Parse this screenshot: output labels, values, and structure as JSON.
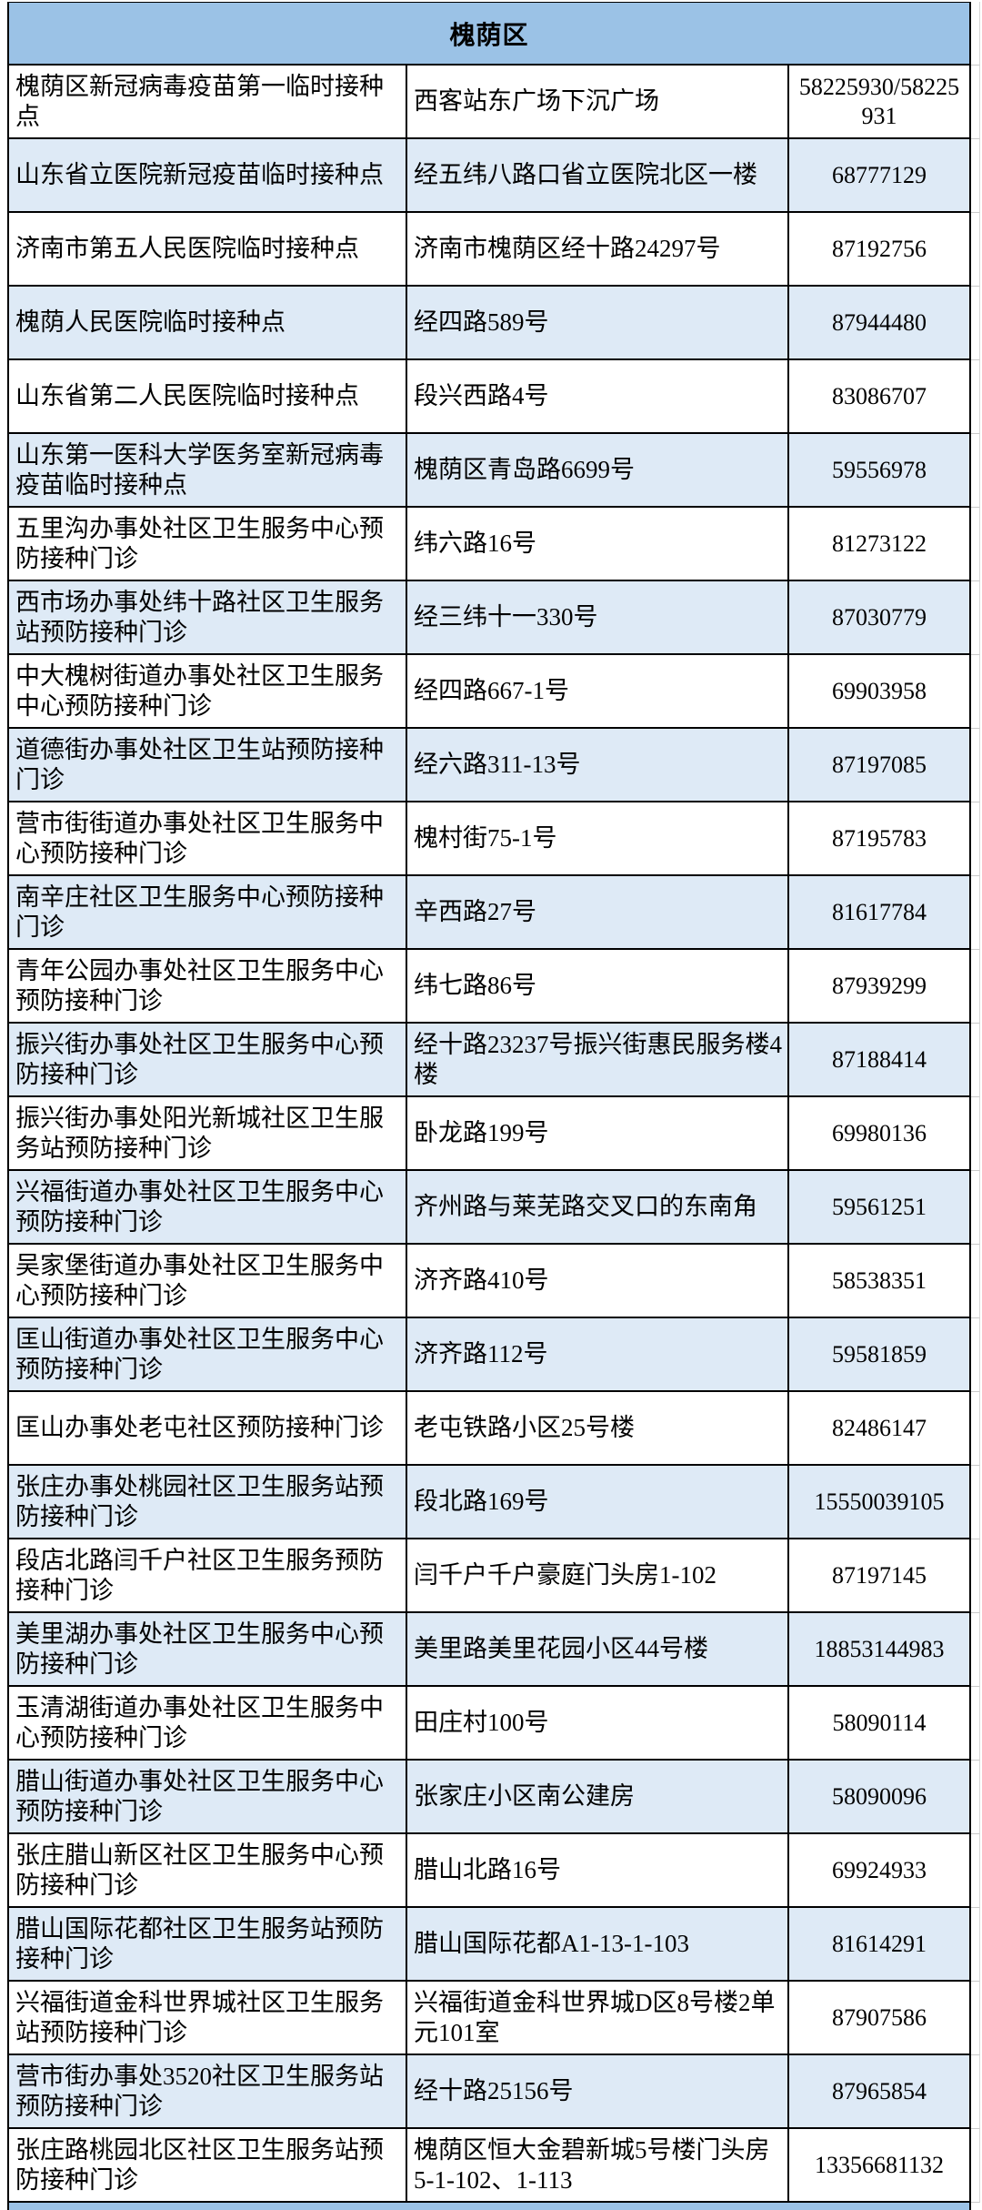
{
  "table": {
    "district": "槐荫区",
    "colors": {
      "header_bg": "#9bc2e6",
      "alt_row_bg": "#deeaf6",
      "border": "#000000"
    },
    "rows": [
      {
        "name": "槐荫区新冠病毒疫苗第一临时接种点",
        "address": "西客站东广场下沉广场",
        "phone": "58225930/58225931"
      },
      {
        "name": "山东省立医院新冠疫苗临时接种点",
        "address": "经五纬八路口省立医院北区一楼",
        "phone": "68777129"
      },
      {
        "name": "济南市第五人民医院临时接种点",
        "address": "济南市槐荫区经十路24297号",
        "phone": "87192756"
      },
      {
        "name": "槐荫人民医院临时接种点",
        "address": "经四路589号",
        "phone": "87944480"
      },
      {
        "name": "山东省第二人民医院临时接种点",
        "address": "段兴西路4号",
        "phone": "83086707"
      },
      {
        "name": "山东第一医科大学医务室新冠病毒疫苗临时接种点",
        "address": "槐荫区青岛路6699号",
        "phone": "59556978"
      },
      {
        "name": "五里沟办事处社区卫生服务中心预防接种门诊",
        "address": "纬六路16号",
        "phone": "81273122"
      },
      {
        "name": "西市场办事处纬十路社区卫生服务站预防接种门诊",
        "address": "经三纬十一330号",
        "phone": "87030779"
      },
      {
        "name": "中大槐树街道办事处社区卫生服务中心预防接种门诊",
        "address": "经四路667-1号",
        "phone": "69903958"
      },
      {
        "name": "道德街办事处社区卫生站预防接种门诊",
        "address": "经六路311-13号",
        "phone": "87197085"
      },
      {
        "name": "营市街街道办事处社区卫生服务中心预防接种门诊",
        "address": "槐村街75-1号",
        "phone": "87195783"
      },
      {
        "name": "南辛庄社区卫生服务中心预防接种门诊",
        "address": "辛西路27号",
        "phone": "81617784"
      },
      {
        "name": "青年公园办事处社区卫生服务中心预防接种门诊",
        "address": "纬七路86号",
        "phone": "87939299"
      },
      {
        "name": "振兴街办事处社区卫生服务中心预防接种门诊",
        "address": "经十路23237号振兴街惠民服务楼4楼",
        "phone": "87188414"
      },
      {
        "name": "振兴街办事处阳光新城社区卫生服务站预防接种门诊",
        "address": "卧龙路199号",
        "phone": "69980136"
      },
      {
        "name": "兴福街道办事处社区卫生服务中心预防接种门诊",
        "address": "齐州路与莱芜路交叉口的东南角",
        "phone": "59561251"
      },
      {
        "name": "吴家堡街道办事处社区卫生服务中心预防接种门诊",
        "address": "济齐路410号",
        "phone": "58538351"
      },
      {
        "name": "匡山街道办事处社区卫生服务中心预防接种门诊",
        "address": "济齐路112号",
        "phone": "59581859"
      },
      {
        "name": "匡山办事处老屯社区预防接种门诊",
        "address": "老屯铁路小区25号楼",
        "phone": "82486147"
      },
      {
        "name": "张庄办事处桃园社区卫生服务站预防接种门诊",
        "address": "段北路169号",
        "phone": "15550039105"
      },
      {
        "name": "段店北路闫千户社区卫生服务预防接种门诊",
        "address": "闫千户千户豪庭门头房1-102",
        "phone": "87197145"
      },
      {
        "name": "美里湖办事处社区卫生服务中心预防接种门诊",
        "address": "美里路美里花园小区44号楼",
        "phone": "18853144983"
      },
      {
        "name": "玉清湖街道办事处社区卫生服务中心预防接种门诊",
        "address": "田庄村100号",
        "phone": "58090114"
      },
      {
        "name": "腊山街道办事处社区卫生服务中心预防接种门诊",
        "address": "张家庄小区南公建房",
        "phone": "58090096"
      },
      {
        "name": "张庄腊山新区社区卫生服务中心预防接种门诊",
        "address": "腊山北路16号",
        "phone": "69924933"
      },
      {
        "name": "腊山国际花都社区卫生服务站预防接种门诊",
        "address": "腊山国际花都A1-13-1-103",
        "phone": "81614291"
      },
      {
        "name": "兴福街道金科世界城社区卫生服务站预防接种门诊",
        "address": "兴福街道金科世界城D区8号楼2单元101室",
        "phone": "87907586"
      },
      {
        "name": "营市街办事处3520社区卫生服务站预防接种门诊",
        "address": "经十路25156号",
        "phone": "87965854"
      },
      {
        "name": "张庄路桃园北区社区卫生服务站预防接种门诊",
        "address": "槐荫区恒大金碧新城5号楼门头房5-1-102、1-113",
        "phone": "13356681132"
      }
    ]
  }
}
